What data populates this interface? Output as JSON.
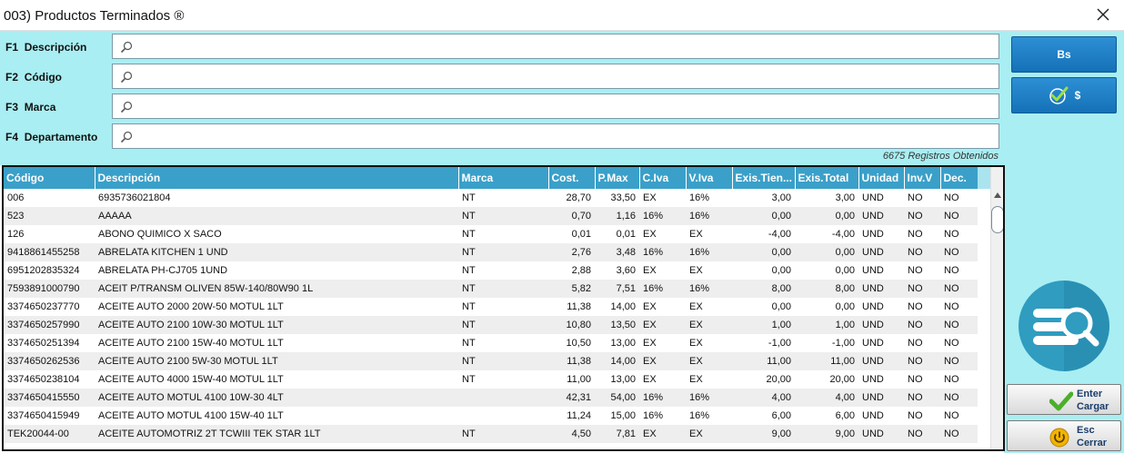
{
  "window": {
    "title": "003) Productos Terminados ®"
  },
  "filters": [
    {
      "key": "F1",
      "label": "Descripción",
      "value": ""
    },
    {
      "key": "F2",
      "label": "Código",
      "value": ""
    },
    {
      "key": "F3",
      "label": "Marca",
      "value": ""
    },
    {
      "key": "F4",
      "label": "Departamento",
      "value": ""
    }
  ],
  "records_text": "6675 Registros Obtenidos",
  "side": {
    "bs_label": "Bs",
    "usd_label": "$",
    "enter_key": "Enter",
    "enter_label": "Cargar",
    "esc_key": "Esc",
    "esc_label": "Cerrar"
  },
  "table": {
    "columns": [
      "Código",
      "Descripción",
      "Marca",
      "Cost.",
      "P.Max",
      "C.Iva",
      "V.Iva",
      "Exis.Tien...",
      "Exis.Total",
      "Unidad",
      "Inv.V",
      "Dec."
    ],
    "rows": [
      [
        "006",
        "6935736021804",
        "NT",
        "28,70",
        "33,50",
        "EX",
        "16%",
        "3,00",
        "3,00",
        "UND",
        "NO",
        "NO"
      ],
      [
        "523",
        "AAAAA",
        "NT",
        "0,70",
        "1,16",
        "16%",
        "16%",
        "0,00",
        "0,00",
        "UND",
        "NO",
        "NO"
      ],
      [
        "126",
        "ABONO QUIMICO X SACO",
        "NT",
        "0,01",
        "0,01",
        "EX",
        "EX",
        "-4,00",
        "-4,00",
        "UND",
        "NO",
        "NO"
      ],
      [
        "9418861455258",
        "ABRELATA KITCHEN 1 UND",
        "NT",
        "2,76",
        "3,48",
        "16%",
        "16%",
        "0,00",
        "0,00",
        "UND",
        "NO",
        "NO"
      ],
      [
        "6951202835324",
        "ABRELATA PH-CJ705 1UND",
        "NT",
        "2,88",
        "3,60",
        "EX",
        "EX",
        "0,00",
        "0,00",
        "UND",
        "NO",
        "NO"
      ],
      [
        "7593891000790",
        "ACEIT P/TRANSM OLIVEN 85W-140/80W90 1L",
        "NT",
        "5,82",
        "7,51",
        "16%",
        "16%",
        "8,00",
        "8,00",
        "UND",
        "NO",
        "NO"
      ],
      [
        "3374650237770",
        "ACEITE AUTO 2000 20W-50 MOTUL 1LT",
        "NT",
        "11,38",
        "14,00",
        "EX",
        "EX",
        "0,00",
        "0,00",
        "UND",
        "NO",
        "NO"
      ],
      [
        "3374650257990",
        "ACEITE AUTO 2100 10W-30 MOTUL 1LT",
        "NT",
        "10,80",
        "13,50",
        "EX",
        "EX",
        "1,00",
        "1,00",
        "UND",
        "NO",
        "NO"
      ],
      [
        "3374650251394",
        "ACEITE AUTO 2100 15W-40 MOTUL 1LT",
        "NT",
        "10,50",
        "13,00",
        "EX",
        "EX",
        "-1,00",
        "-1,00",
        "UND",
        "NO",
        "NO"
      ],
      [
        "3374650262536",
        "ACEITE AUTO 2100 5W-30 MOTUL 1LT",
        "NT",
        "11,38",
        "14,00",
        "EX",
        "EX",
        "11,00",
        "11,00",
        "UND",
        "NO",
        "NO"
      ],
      [
        "3374650238104",
        "ACEITE AUTO 4000 15W-40 MOTUL 1LT",
        "NT",
        "11,00",
        "13,00",
        "EX",
        "EX",
        "20,00",
        "20,00",
        "UND",
        "NO",
        "NO"
      ],
      [
        "3374650415550",
        "ACEITE AUTO MOTUL 4100 10W-30 4LT",
        "",
        "42,31",
        "54,00",
        "16%",
        "16%",
        "4,00",
        "4,00",
        "UND",
        "NO",
        "NO"
      ],
      [
        "3374650415949",
        "ACEITE AUTO MOTUL 4100 15W-40 1LT",
        "",
        "11,24",
        "15,00",
        "16%",
        "16%",
        "6,00",
        "6,00",
        "UND",
        "NO",
        "NO"
      ],
      [
        "TEK20044-00",
        "ACEITE AUTOMOTRIZ 2T TCWIII TEK STAR 1LT",
        "NT",
        "4,50",
        "7,81",
        "EX",
        "EX",
        "9,00",
        "9,00",
        "UND",
        "NO",
        "NO"
      ]
    ]
  },
  "colors": {
    "panel_bg": "#a9eef2",
    "header_bg": "#3aa0c9",
    "button_blue": "#1e7fc6"
  },
  "icons": [
    "close-icon",
    "search-icon",
    "checkmark-icon",
    "database-search-icon",
    "check-icon",
    "power-icon"
  ]
}
